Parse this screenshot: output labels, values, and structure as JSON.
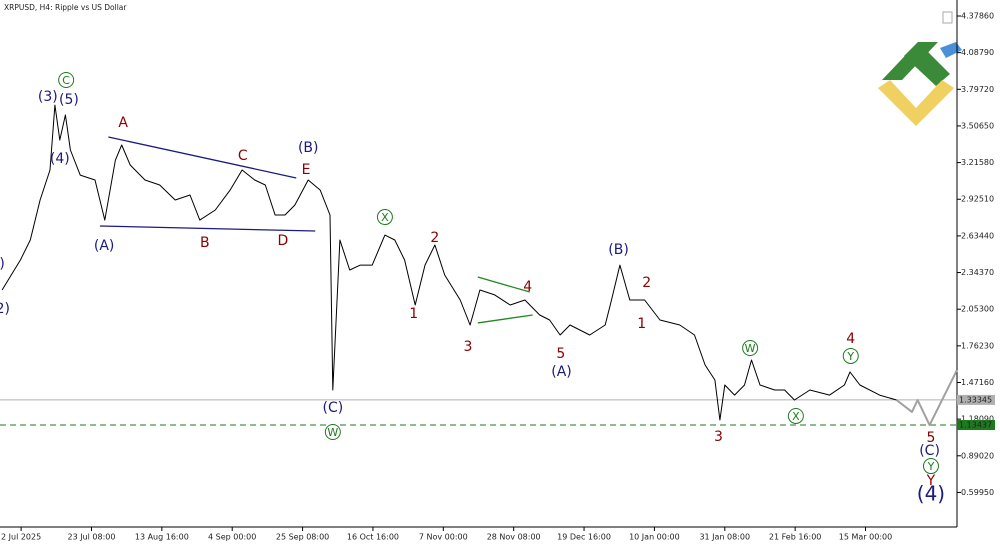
{
  "chart_data": {
    "type": "line",
    "title": "XRPUSD, H4:  Ripple vs US Dollar",
    "xlim": [
      -3,
      133
    ],
    "ylim": [
      0.3254,
      4.5055
    ],
    "xticks": [
      {
        "value": 0,
        "label": "2 Jul 2025"
      },
      {
        "value": 10,
        "label": "23 Jul 08:00"
      },
      {
        "value": 20,
        "label": "13 Aug 16:00"
      },
      {
        "value": 30,
        "label": "4 Sep 00:00"
      },
      {
        "value": 40,
        "label": "25 Sep 08:00"
      },
      {
        "value": 50,
        "label": "16 Oct 16:00"
      },
      {
        "value": 60,
        "label": "7 Nov 00:00"
      },
      {
        "value": 70,
        "label": "28 Nov 08:00"
      },
      {
        "value": 80,
        "label": "19 Dec 16:00"
      },
      {
        "value": 90,
        "label": "10 Jan 00:00"
      },
      {
        "value": 100,
        "label": "31 Jan 08:00"
      },
      {
        "value": 110,
        "label": "21 Feb 16:00"
      },
      {
        "value": 120,
        "label": "15 Mar 00:00"
      }
    ],
    "yticks": [
      {
        "value": 4.3786,
        "label": "4.37860"
      },
      {
        "value": 4.0879,
        "label": "4.08790"
      },
      {
        "value": 3.7972,
        "label": "3.79720"
      },
      {
        "value": 3.5065,
        "label": "3.50650"
      },
      {
        "value": 3.2158,
        "label": "3.21580"
      },
      {
        "value": 2.9251,
        "label": "2.92510"
      },
      {
        "value": 2.6344,
        "label": "2.63440"
      },
      {
        "value": 2.3437,
        "label": "2.34370"
      },
      {
        "value": 2.053,
        "label": "2.05300"
      },
      {
        "value": 1.7623,
        "label": "1.76230"
      },
      {
        "value": 1.4716,
        "label": "1.47160"
      },
      {
        "value": 1.1809,
        "label": "1.18090"
      },
      {
        "value": 0.8902,
        "label": "0.89020"
      },
      {
        "value": 0.5995,
        "label": "0.59950"
      }
    ],
    "series": [
      {
        "color": "#000000",
        "x": [
          -2.7,
          -0.1,
          1.3,
          2.7,
          4.1,
          4.8,
          5.5,
          6.3,
          7.0,
          8.4,
          10.5,
          11.9,
          13.4,
          14.3,
          15.5,
          17.6,
          19.7,
          21.9,
          24.0,
          25.4,
          27.6,
          29.7,
          31.4,
          33.2,
          34.7,
          36.1,
          37.5,
          38.9,
          40.8,
          42.5,
          43.9,
          44.3,
          45.3,
          46.7,
          48.2,
          49.9,
          51.7,
          53.1,
          54.5,
          56.0,
          57.4,
          58.8,
          60.2,
          62.4,
          63.8,
          65.2,
          67.3,
          69.5,
          71.6,
          73.7,
          75.1,
          76.6,
          78.0,
          80.8,
          83.0,
          83.9,
          85.1,
          86.5,
          88.6,
          90.8,
          93.6,
          95.7,
          97.2,
          98.6,
          99.3,
          100.0,
          101.4,
          102.8,
          103.8,
          105.0,
          107.1,
          108.5,
          109.9,
          112.1,
          114.9,
          117.0,
          117.8,
          119.2,
          122.0,
          124.4
        ],
        "values": [
          2.205,
          2.443,
          2.602,
          2.919,
          3.157,
          3.672,
          3.395,
          3.593,
          3.316,
          3.117,
          3.078,
          2.76,
          3.236,
          3.355,
          3.197,
          3.078,
          3.038,
          2.919,
          2.959,
          2.76,
          2.84,
          2.998,
          3.157,
          3.078,
          3.038,
          2.8,
          2.8,
          2.879,
          3.078,
          2.998,
          2.8,
          1.412,
          2.602,
          2.364,
          2.403,
          2.403,
          2.641,
          2.602,
          2.443,
          2.086,
          2.403,
          2.562,
          2.324,
          2.126,
          1.928,
          2.205,
          2.166,
          2.086,
          2.126,
          2.007,
          1.967,
          1.848,
          1.928,
          1.848,
          1.928,
          2.126,
          2.403,
          2.126,
          2.126,
          1.967,
          1.928,
          1.848,
          1.61,
          1.491,
          1.174,
          1.452,
          1.372,
          1.452,
          1.65,
          1.452,
          1.412,
          1.412,
          1.333,
          1.412,
          1.372,
          1.452,
          1.555,
          1.452,
          1.372,
          1.333
        ]
      },
      {
        "color": "#a0a0a0",
        "x": [
          124.4,
          126.6,
          127.4,
          129.1,
          133.0
        ],
        "values": [
          1.333,
          1.238,
          1.333,
          1.134,
          1.571
        ]
      }
    ],
    "reference_lines": [
      {
        "value": 1.33345,
        "label": "1.33345",
        "color": "#b0b0b0",
        "dashed": false
      },
      {
        "value": 1.13437,
        "label": "1.13437",
        "color": "#1e7a1e",
        "dashed": true
      }
    ],
    "trendlines": [
      {
        "color": "#1a1a80",
        "x": [
          12.4,
          39.1
        ],
        "y": [
          3.419,
          3.094
        ]
      },
      {
        "color": "#1a1a80",
        "x": [
          11.2,
          41.8
        ],
        "y": [
          2.713,
          2.673
        ]
      },
      {
        "color": "#1e8a1e",
        "x": [
          64.9,
          72.3
        ],
        "y": [
          2.308,
          2.189
        ]
      },
      {
        "color": "#1e8a1e",
        "x": [
          64.9,
          72.7
        ],
        "y": [
          1.944,
          2.007
        ]
      }
    ],
    "annotations": [
      {
        "text": "(3)",
        "x": 3.8,
        "y": 3.744,
        "color": "#1a1a80"
      },
      {
        "text": "(5)",
        "x": 6.8,
        "y": 3.72,
        "color": "#1a1a80"
      },
      {
        "text": "C",
        "x": 6.4,
        "y": 3.871,
        "color": "#1e7a1e",
        "circled": true
      },
      {
        "text": "(4)",
        "x": 5.5,
        "y": 3.252,
        "color": "#1a1a80"
      },
      {
        "text": "A",
        "x": 14.5,
        "y": 3.538,
        "color": "#8b0000"
      },
      {
        "text": "C",
        "x": 31.5,
        "y": 3.276,
        "color": "#8b0000"
      },
      {
        "text": "(B)",
        "x": 40.8,
        "y": 3.339,
        "color": "#1a1a80"
      },
      {
        "text": "E",
        "x": 40.5,
        "y": 3.165,
        "color": "#8b0000"
      },
      {
        "text": "(A)",
        "x": 11.8,
        "y": 2.562,
        "color": "#1a1a80"
      },
      {
        "text": "B",
        "x": 26.1,
        "y": 2.586,
        "color": "#8b0000"
      },
      {
        "text": "D",
        "x": 37.2,
        "y": 2.602,
        "color": "#8b0000"
      },
      {
        "text": "X",
        "x": 51.7,
        "y": 2.784,
        "color": "#1e7a1e",
        "circled": true
      },
      {
        "text": "2",
        "x": 58.8,
        "y": 2.626,
        "color": "#8b0000"
      },
      {
        "text": "1",
        "x": 55.8,
        "y": 2.023,
        "color": "#8b0000"
      },
      {
        "text": "3",
        "x": 63.5,
        "y": 1.761,
        "color": "#8b0000"
      },
      {
        "text": "4",
        "x": 72.0,
        "y": 2.237,
        "color": "#8b0000"
      },
      {
        "text": "5",
        "x": 76.7,
        "y": 1.706,
        "color": "#8b0000"
      },
      {
        "text": "(A)",
        "x": 76.8,
        "y": 1.563,
        "color": "#1a1a80"
      },
      {
        "text": "(B)",
        "x": 84.9,
        "y": 2.53,
        "color": "#1a1a80"
      },
      {
        "text": "2",
        "x": 88.9,
        "y": 2.269,
        "color": "#8b0000"
      },
      {
        "text": "1",
        "x": 88.2,
        "y": 1.943,
        "color": "#8b0000"
      },
      {
        "text": "W",
        "x": 103.6,
        "y": 1.745,
        "color": "#1e7a1e",
        "circled": true
      },
      {
        "text": "X",
        "x": 110.1,
        "y": 1.206,
        "color": "#1e7a1e",
        "circled": true
      },
      {
        "text": "Y",
        "x": 117.9,
        "y": 1.682,
        "color": "#1e7a1e",
        "circled": true
      },
      {
        "text": "4",
        "x": 117.9,
        "y": 1.825,
        "color": "#8b0000"
      },
      {
        "text": "3",
        "x": 99.1,
        "y": 1.047,
        "color": "#8b0000"
      },
      {
        "text": "(C)",
        "x": 44.3,
        "y": 1.277,
        "color": "#1a1a80"
      },
      {
        "text": "W",
        "x": 44.3,
        "y": 1.079,
        "color": "#1e7a1e",
        "circled": true
      },
      {
        "text": "5",
        "x": 129.3,
        "y": 1.039,
        "color": "#8b0000"
      },
      {
        "text": "(C)",
        "x": 129.1,
        "y": 0.936,
        "color": "#1a1a80"
      },
      {
        "text": "Y",
        "x": 129.3,
        "y": 0.809,
        "color": "#1e7a1e",
        "circled": true
      },
      {
        "text": "Y",
        "x": 129.3,
        "y": 0.698,
        "color": "#8b0000"
      },
      {
        "text": "(4)",
        "x": 129.3,
        "y": 0.587,
        "color": "#1a1a80",
        "large": true
      },
      {
        "text": ")",
        "x": -2.7,
        "y": 2.419,
        "color": "#1a1a80"
      },
      {
        "text": "2)",
        "x": -2.6,
        "y": 2.062,
        "color": "#1a1a80"
      }
    ]
  }
}
